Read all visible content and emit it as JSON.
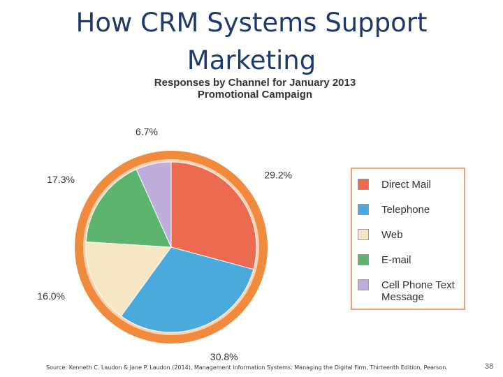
{
  "slide": {
    "title": "How CRM Systems Support Marketing",
    "source": "Source: Kenneth C. Laudon & Jane P. Laudon (2014), Management Information Systems: Managing the Digital Firm, Thirteenth Edition, Pearson.",
    "page_number": "38"
  },
  "chart_data": {
    "type": "pie",
    "title": "Responses by Channel for January 2013 Promotional Campaign",
    "categories": [
      "Direct Mail",
      "Telephone",
      "Web",
      "E-mail",
      "Cell Phone Text Message"
    ],
    "values": [
      29.2,
      30.8,
      16.0,
      17.3,
      6.7
    ],
    "value_labels": [
      "29.2%",
      "30.8%",
      "16.0%",
      "17.3%",
      "6.7%"
    ],
    "colors": [
      "#ec6a4f",
      "#4aaadb",
      "#f7e7c4",
      "#5cb46e",
      "#bfaedb"
    ]
  }
}
